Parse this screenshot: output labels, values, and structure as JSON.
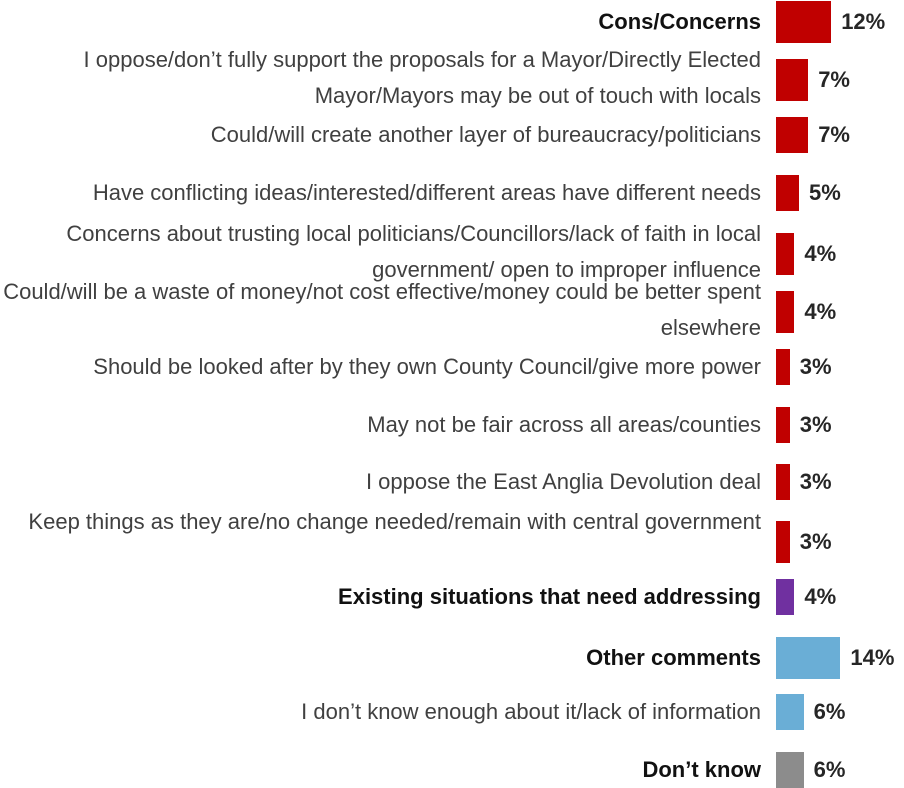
{
  "chart_data": {
    "type": "bar",
    "orientation": "horizontal",
    "unit": "%",
    "colors": {
      "cons": "#c00000",
      "existing": "#7030a0",
      "other": "#6aaed6",
      "dont_know": "#8c8c8c"
    },
    "rows": [
      {
        "label": "Cons/Concerns",
        "value": 12,
        "display": "12%",
        "bold": true,
        "group": "cons"
      },
      {
        "label": "I oppose/don’t fully support the proposals for a Mayor/Directly Elected Mayor/Mayors may be out of touch with locals",
        "value": 7,
        "display": "7%",
        "bold": false,
        "group": "cons"
      },
      {
        "label": "Could/will create another layer of bureaucracy/politicians",
        "value": 7,
        "display": "7%",
        "bold": false,
        "group": "cons"
      },
      {
        "label": "Have conflicting ideas/interested/different areas have different needs",
        "value": 5,
        "display": "5%",
        "bold": false,
        "group": "cons"
      },
      {
        "label": "Concerns about trusting local politicians/Councillors/lack of faith in local government/ open to improper influence",
        "value": 4,
        "display": "4%",
        "bold": false,
        "group": "cons"
      },
      {
        "label": "Could/will be a waste of money/not cost effective/money could be better spent elsewhere",
        "value": 4,
        "display": "4%",
        "bold": false,
        "group": "cons"
      },
      {
        "label": "Should be looked after by they own County Council/give more power",
        "value": 3,
        "display": "3%",
        "bold": false,
        "group": "cons"
      },
      {
        "label": "May not be fair across all areas/counties",
        "value": 3,
        "display": "3%",
        "bold": false,
        "group": "cons"
      },
      {
        "label": "I oppose the East Anglia Devolution deal",
        "value": 3,
        "display": "3%",
        "bold": false,
        "group": "cons"
      },
      {
        "label": "Keep things as they are/no change needed/remain with central government",
        "value": 3,
        "display": "3%",
        "bold": false,
        "group": "cons"
      },
      {
        "label": "Existing situations that need addressing",
        "value": 4,
        "display": "4%",
        "bold": true,
        "group": "existing"
      },
      {
        "label": "Other comments",
        "value": 14,
        "display": "14%",
        "bold": true,
        "group": "other"
      },
      {
        "label": "I don’t know enough about it/lack of information",
        "value": 6,
        "display": "6%",
        "bold": false,
        "group": "other"
      },
      {
        "label": "Don’t know",
        "value": 6,
        "display": "6%",
        "bold": true,
        "group": "dont_know"
      }
    ]
  }
}
